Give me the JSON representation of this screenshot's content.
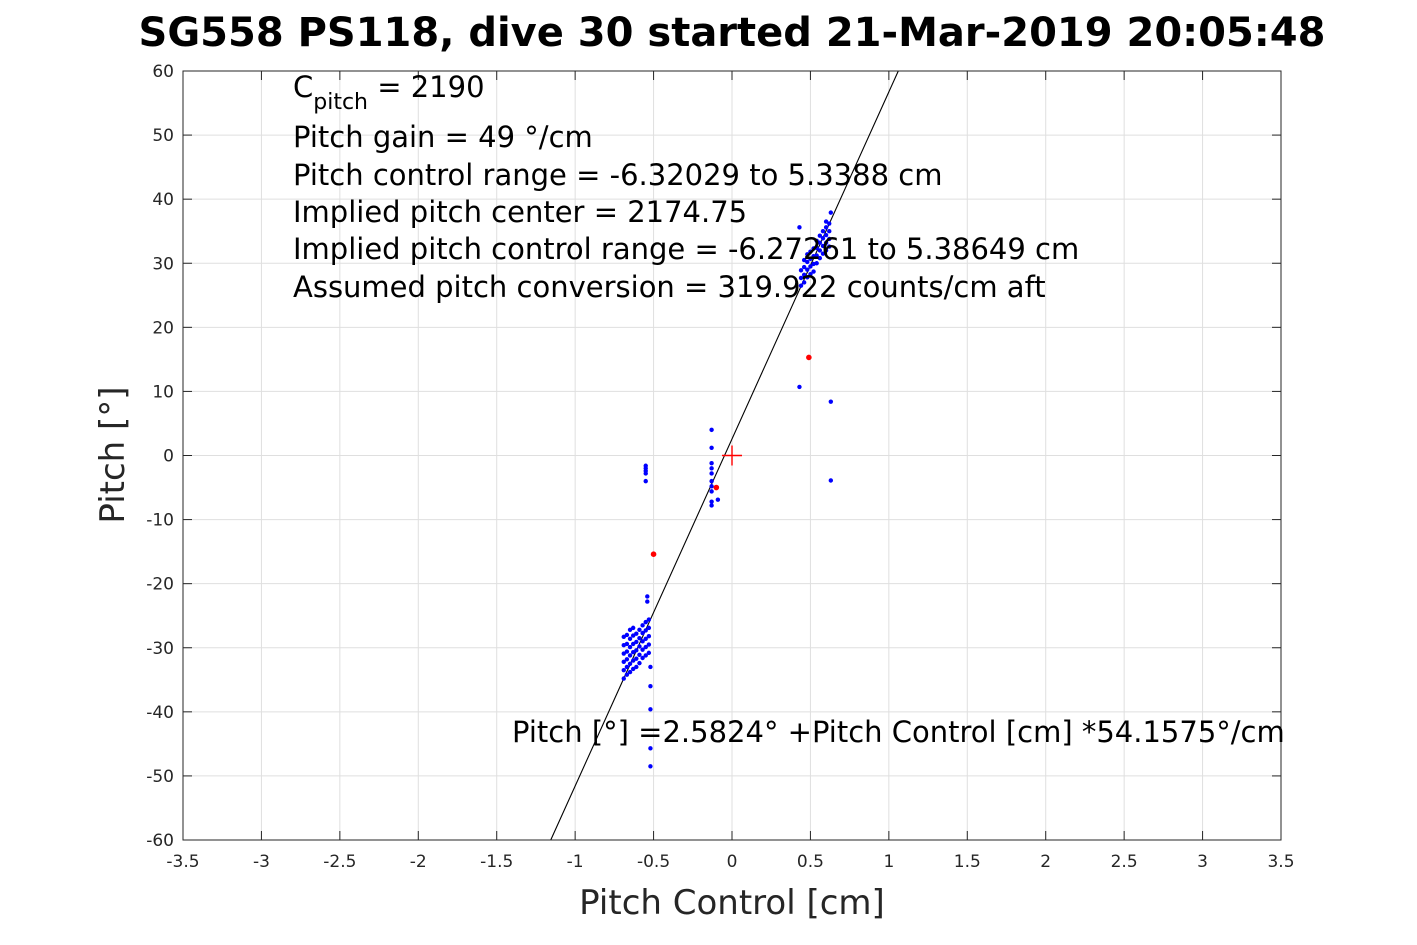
{
  "chart_data": {
    "type": "scatter",
    "title": "SG558 PS118, dive 30 started 21-Mar-2019 20:05:48",
    "xlabel": "Pitch Control [cm]",
    "ylabel": "Pitch [°]",
    "xlim": [
      -3.5,
      3.5
    ],
    "ylim": [
      -60,
      60
    ],
    "xticks": [
      -3.5,
      -3,
      -2.5,
      -2,
      -1.5,
      -1,
      -0.5,
      0,
      0.5,
      1,
      1.5,
      2,
      2.5,
      3,
      3.5
    ],
    "xtick_labels": [
      "-3.5",
      "-3",
      "-2.5",
      "-2",
      "-1.5",
      "-1",
      "-0.5",
      "0",
      "0.5",
      "1",
      "1.5",
      "2",
      "2.5",
      "3",
      "3.5"
    ],
    "yticks": [
      -60,
      -50,
      -40,
      -30,
      -20,
      -10,
      0,
      10,
      20,
      30,
      40,
      50,
      60
    ],
    "ytick_labels": [
      "-60",
      "-50",
      "-40",
      "-30",
      "-20",
      "-10",
      "0",
      "10",
      "20",
      "30",
      "40",
      "50",
      "60"
    ],
    "grid": true,
    "annotations": {
      "cpitch_base": "C",
      "cpitch_sub": "pitch",
      "cpitch_value": " = 2190",
      "line2": "Pitch gain = 49 °/cm",
      "line3": "Pitch control range = -6.32029 to 5.3388 cm",
      "line4": "Implied pitch center = 2174.75",
      "line5": "Implied pitch control range = -6.27261 to 5.38649 cm",
      "line6": "Assumed pitch conversion = 319.922 counts/cm aft",
      "fit_equation": "Pitch [°] =2.5824° +Pitch Control [cm] *54.1575°/cm"
    },
    "fit_line": {
      "intercept": 2.5824,
      "slope": 54.1575
    },
    "center_marker": {
      "x": 0,
      "y": 0
    },
    "colors": {
      "points": "#0000ff",
      "outliers": "#ff0000",
      "fit": "#000000",
      "center": "#ff0000"
    },
    "series": [
      {
        "marker": "dot",
        "color": "#0000ff",
        "points": [
          [
            -0.69,
            -34.8
          ],
          [
            -0.69,
            -33.5
          ],
          [
            -0.69,
            -32.2
          ],
          [
            -0.69,
            -30.9
          ],
          [
            -0.69,
            -29.6
          ],
          [
            -0.69,
            -28.3
          ],
          [
            -0.67,
            -34.2
          ],
          [
            -0.67,
            -33.0
          ],
          [
            -0.67,
            -31.8
          ],
          [
            -0.67,
            -30.6
          ],
          [
            -0.67,
            -29.4
          ],
          [
            -0.67,
            -28.0
          ],
          [
            -0.65,
            -33.8
          ],
          [
            -0.65,
            -32.5
          ],
          [
            -0.65,
            -31.2
          ],
          [
            -0.65,
            -29.9
          ],
          [
            -0.65,
            -28.6
          ],
          [
            -0.65,
            -27.2
          ],
          [
            -0.63,
            -33.3
          ],
          [
            -0.63,
            -32.0
          ],
          [
            -0.63,
            -30.7
          ],
          [
            -0.63,
            -29.4
          ],
          [
            -0.63,
            -28.1
          ],
          [
            -0.63,
            -26.9
          ],
          [
            -0.61,
            -33.0
          ],
          [
            -0.61,
            -31.7
          ],
          [
            -0.61,
            -30.4
          ],
          [
            -0.61,
            -29.1
          ],
          [
            -0.61,
            -27.8
          ],
          [
            -0.59,
            -32.4
          ],
          [
            -0.59,
            -31.1
          ],
          [
            -0.59,
            -29.8
          ],
          [
            -0.59,
            -28.5
          ],
          [
            -0.59,
            -27.2
          ],
          [
            -0.57,
            -31.6
          ],
          [
            -0.57,
            -30.3
          ],
          [
            -0.57,
            -29.0
          ],
          [
            -0.57,
            -27.7
          ],
          [
            -0.57,
            -26.5
          ],
          [
            -0.55,
            -31.2
          ],
          [
            -0.55,
            -29.9
          ],
          [
            -0.55,
            -28.6
          ],
          [
            -0.55,
            -27.3
          ],
          [
            -0.55,
            -26.0
          ],
          [
            -0.53,
            -30.8
          ],
          [
            -0.53,
            -29.5
          ],
          [
            -0.53,
            -28.2
          ],
          [
            -0.53,
            -26.9
          ],
          [
            -0.53,
            -25.6
          ],
          [
            -0.54,
            -22.0
          ],
          [
            -0.54,
            -22.8
          ],
          [
            -0.52,
            -33.0
          ],
          [
            -0.52,
            -36.0
          ],
          [
            -0.52,
            -39.6
          ],
          [
            -0.52,
            -45.7
          ],
          [
            -0.52,
            -48.5
          ],
          [
            -0.55,
            -1.6
          ],
          [
            -0.55,
            -2.0
          ],
          [
            -0.55,
            -2.4
          ],
          [
            -0.55,
            -2.8
          ],
          [
            -0.55,
            -4.0
          ],
          [
            -0.13,
            4.0
          ],
          [
            -0.13,
            1.2
          ],
          [
            -0.13,
            -1.2
          ],
          [
            -0.13,
            -2.0
          ],
          [
            -0.13,
            -2.8
          ],
          [
            -0.13,
            -4.0
          ],
          [
            -0.13,
            -4.8
          ],
          [
            -0.13,
            -5.6
          ],
          [
            -0.13,
            -7.2
          ],
          [
            -0.13,
            -7.8
          ],
          [
            -0.09,
            -6.9
          ],
          [
            0.43,
            35.6
          ],
          [
            0.43,
            10.7
          ],
          [
            0.44,
            26.5
          ],
          [
            0.44,
            27.7
          ],
          [
            0.44,
            28.9
          ],
          [
            0.46,
            27.0
          ],
          [
            0.46,
            28.2
          ],
          [
            0.46,
            29.4
          ],
          [
            0.46,
            30.5
          ],
          [
            0.48,
            27.8
          ],
          [
            0.48,
            29.0
          ],
          [
            0.48,
            30.2
          ],
          [
            0.48,
            31.4
          ],
          [
            0.5,
            28.3
          ],
          [
            0.5,
            29.5
          ],
          [
            0.5,
            30.7
          ],
          [
            0.5,
            31.8
          ],
          [
            0.52,
            28.7
          ],
          [
            0.52,
            29.9
          ],
          [
            0.52,
            31.1
          ],
          [
            0.52,
            32.3
          ],
          [
            0.54,
            30.0
          ],
          [
            0.54,
            31.2
          ],
          [
            0.54,
            32.4
          ],
          [
            0.54,
            33.5
          ],
          [
            0.56,
            30.8
          ],
          [
            0.56,
            32.0
          ],
          [
            0.56,
            33.2
          ],
          [
            0.56,
            34.3
          ],
          [
            0.58,
            31.5
          ],
          [
            0.58,
            32.7
          ],
          [
            0.58,
            33.9
          ],
          [
            0.58,
            35.0
          ],
          [
            0.6,
            32.0
          ],
          [
            0.6,
            33.2
          ],
          [
            0.6,
            34.4
          ],
          [
            0.6,
            35.6
          ],
          [
            0.6,
            36.5
          ],
          [
            0.62,
            32.6
          ],
          [
            0.62,
            33.8
          ],
          [
            0.62,
            35.0
          ],
          [
            0.62,
            36.2
          ],
          [
            0.63,
            37.9
          ],
          [
            0.63,
            8.4
          ],
          [
            0.63,
            -3.9
          ]
        ]
      },
      {
        "marker": "dot",
        "color": "#ff0000",
        "points": [
          [
            -0.5,
            -15.4
          ],
          [
            -0.1,
            -5.0
          ],
          [
            0.49,
            15.3
          ]
        ]
      }
    ]
  }
}
